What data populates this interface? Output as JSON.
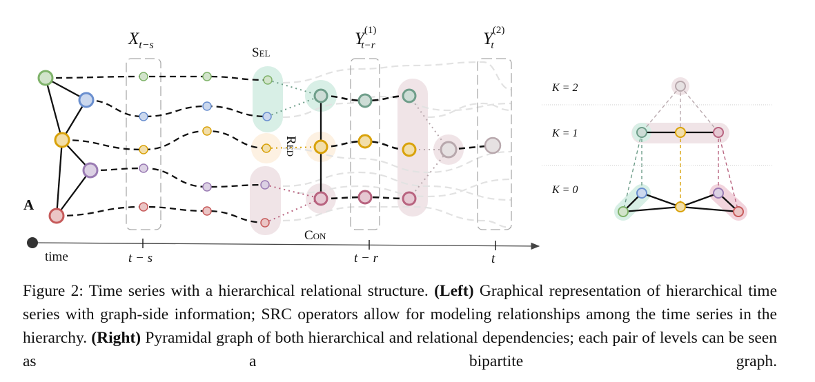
{
  "figure": {
    "left_labels": {
      "x_label": "X",
      "x_sub": "t−s",
      "sel": "Sel",
      "red": "Red",
      "con": "Con",
      "y1_label": "Y",
      "y1_sub": "t−r",
      "y1_sup": "(1)",
      "y2_label": "Y",
      "y2_sub": "t",
      "y2_sup": "(2)",
      "adjacency": "A"
    },
    "axis": {
      "start": "time",
      "ticks": [
        "t − s",
        "t − r",
        "t"
      ]
    },
    "right_labels": {
      "levels": [
        "K = 2",
        "K = 1",
        "K = 0"
      ]
    },
    "colors": {
      "green": "#7fb36a",
      "blue": "#6a8fcf",
      "orange": "#d9a20a",
      "purple": "#9a7bb3",
      "red": "#c65a5a",
      "teal": "#6f9e8a",
      "pink": "#b8637f",
      "gray": "#b8a8ad",
      "sel_bg": "#d8efe6",
      "con_bg": "#f0e4e7",
      "red_bg": "#fdf1e2"
    }
  },
  "caption": {
    "prefix": "Figure 2: Time series with a hierarchical relational structure.",
    "left_tag": "(Left)",
    "left_text": "Graphical representation of hierarchical time series with graph-side information; SRC operators allow for modeling relationships among the time series in the hierarchy.",
    "right_tag": "(Right)",
    "right_text": "Pyramidal graph of both hierarchical and relational dependencies; each pair of levels can be seen as a bipartite graph."
  }
}
